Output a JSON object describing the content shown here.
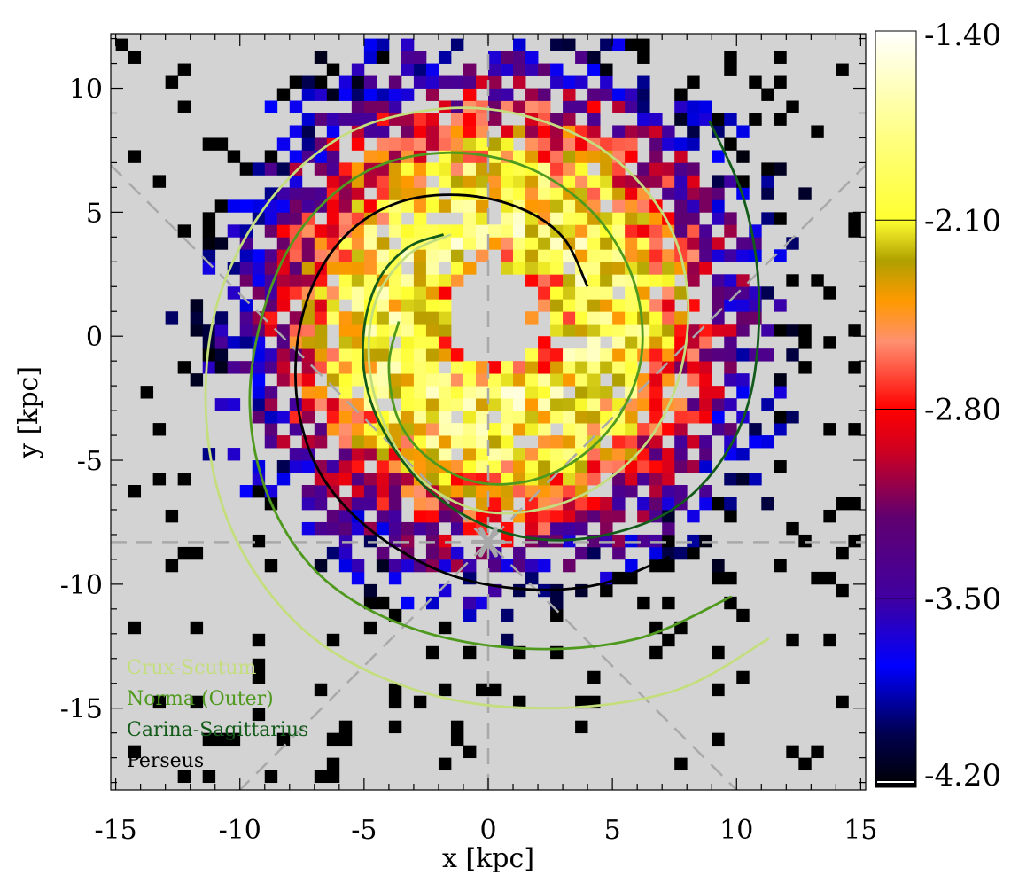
{
  "chart_data": {
    "type": "heatmap",
    "title": "",
    "xlabel": "x [kpc]",
    "ylabel": "y [kpc]",
    "xlim": [
      -15.2,
      15.2
    ],
    "ylim": [
      -18.3,
      12.2
    ],
    "x_ticks": [
      -15,
      -10,
      -5,
      0,
      5,
      10,
      15
    ],
    "y_ticks": [
      -15,
      -10,
      -5,
      0,
      5,
      10
    ],
    "x_tick_labels": [
      "-15",
      "-10",
      "-5",
      "0",
      "5",
      "10",
      "15"
    ],
    "y_tick_labels": [
      "-15",
      "-10",
      "-5",
      "0",
      "5",
      "10"
    ],
    "background_color": "#d3d3d3",
    "sun_position": {
      "x": 0,
      "y": -8.3,
      "marker": "asterisk",
      "color": "#a9a9a9"
    },
    "guide_lines": [
      {
        "type": "horizontal",
        "y": -8.3,
        "style": "dashed",
        "color": "#a9a9a9"
      },
      {
        "type": "vertical",
        "x": 0,
        "style": "dashed",
        "color": "#a9a9a9"
      },
      {
        "type": "diagonal",
        "slope": 1,
        "through": [
          0,
          -8.3
        ],
        "style": "dashed",
        "color": "#a9a9a9"
      },
      {
        "type": "diagonal",
        "slope": -1,
        "through": [
          0,
          -8.3
        ],
        "style": "dashed",
        "color": "#a9a9a9"
      }
    ],
    "colorbar": {
      "range": [
        -4.2,
        -1.4
      ],
      "tick_values": [
        -1.4,
        -2.1,
        -2.8,
        -3.5,
        -4.2
      ],
      "tick_labels": [
        "-1.40",
        "-2.10",
        "-2.80",
        "-3.50",
        "-4.20"
      ],
      "colormap_stops": [
        {
          "value": -4.2,
          "color": "#000000"
        },
        {
          "value": -4.0,
          "color": "#000050"
        },
        {
          "value": -3.75,
          "color": "#0000ff"
        },
        {
          "value": -3.5,
          "color": "#4000a0"
        },
        {
          "value": -3.2,
          "color": "#600070"
        },
        {
          "value": -2.95,
          "color": "#d00020"
        },
        {
          "value": -2.8,
          "color": "#ff0000"
        },
        {
          "value": -2.55,
          "color": "#ff9070"
        },
        {
          "value": -2.4,
          "color": "#ff9900"
        },
        {
          "value": -2.25,
          "color": "#b0a000"
        },
        {
          "value": -2.1,
          "color": "#ffff30"
        },
        {
          "value": -1.8,
          "color": "#ffff80"
        },
        {
          "value": -1.4,
          "color": "#ffffff"
        }
      ]
    },
    "grid": {
      "cell_size_kpc": 0.5,
      "note": "binned map of values between -4.20 and -1.40"
    },
    "spiral_arms": [
      {
        "name": "Crux-Scutum",
        "color": "#c4de7e",
        "points": [
          [
            11.3,
            -12.2
          ],
          [
            7.5,
            -14.3
          ],
          [
            2.5,
            -15.0
          ],
          [
            -2.5,
            -14.4
          ],
          [
            -7.0,
            -12.2
          ],
          [
            -10.0,
            -8.5
          ],
          [
            -11.3,
            -4.0
          ],
          [
            -11.0,
            1.0
          ],
          [
            -9.0,
            5.2
          ],
          [
            -6.0,
            8.0
          ],
          [
            -2.5,
            9.1
          ],
          [
            1.0,
            9.0
          ],
          [
            4.5,
            7.6
          ],
          [
            7.0,
            5.0
          ],
          [
            8.0,
            2.0
          ],
          [
            7.8,
            -1.2
          ],
          [
            6.6,
            -4.0
          ],
          [
            4.5,
            -6.0
          ],
          [
            2.0,
            -7.0
          ],
          [
            -0.5,
            -7.0
          ],
          [
            -2.8,
            -5.7
          ],
          [
            -4.2,
            -3.5
          ],
          [
            -4.8,
            -1.0
          ],
          [
            -4.5,
            1.5
          ],
          [
            -3.2,
            3.3
          ],
          [
            -1.5,
            4.1
          ]
        ]
      },
      {
        "name": "Norma (Outer)",
        "color": "#4f9a1e",
        "points": [
          [
            9.8,
            -10.5
          ],
          [
            6.0,
            -12.2
          ],
          [
            1.5,
            -12.6
          ],
          [
            -3.0,
            -11.8
          ],
          [
            -6.6,
            -9.8
          ],
          [
            -8.8,
            -6.6
          ],
          [
            -9.6,
            -2.8
          ],
          [
            -9.0,
            1.2
          ],
          [
            -7.4,
            4.5
          ],
          [
            -4.8,
            6.7
          ],
          [
            -1.6,
            7.4
          ],
          [
            1.6,
            6.8
          ],
          [
            4.2,
            5.0
          ],
          [
            5.8,
            2.4
          ],
          [
            6.2,
            -0.5
          ],
          [
            5.4,
            -3.0
          ],
          [
            3.8,
            -4.8
          ],
          [
            1.8,
            -5.8
          ],
          [
            -0.4,
            -5.9
          ],
          [
            -2.3,
            -5.0
          ],
          [
            -3.6,
            -3.4
          ],
          [
            -4.0,
            -1.2
          ],
          [
            -3.6,
            0.6
          ]
        ]
      },
      {
        "name": "Carina-Sagittarius",
        "color": "#135b1a",
        "points": [
          [
            8.9,
            8.7
          ],
          [
            10.3,
            5.5
          ],
          [
            10.9,
            1.8
          ],
          [
            10.6,
            -2.2
          ],
          [
            9.4,
            -5.0
          ],
          [
            7.4,
            -7.0
          ],
          [
            4.8,
            -8.0
          ],
          [
            2.2,
            -8.2
          ],
          [
            -0.2,
            -7.6
          ],
          [
            -2.4,
            -6.2
          ],
          [
            -4.0,
            -4.2
          ],
          [
            -4.9,
            -2.0
          ],
          [
            -5.0,
            0.3
          ],
          [
            -4.4,
            2.3
          ],
          [
            -3.2,
            3.6
          ],
          [
            -1.8,
            4.1
          ]
        ]
      },
      {
        "name": "Perseus",
        "color": "#000000",
        "points": [
          [
            7.3,
            -8.9
          ],
          [
            4.5,
            -10.0
          ],
          [
            1.5,
            -10.2
          ],
          [
            -1.6,
            -9.6
          ],
          [
            -4.5,
            -8.0
          ],
          [
            -6.6,
            -5.8
          ],
          [
            -7.6,
            -3.2
          ],
          [
            -7.7,
            -0.4
          ],
          [
            -7.0,
            2.2
          ],
          [
            -5.6,
            4.2
          ],
          [
            -3.6,
            5.4
          ],
          [
            -1.2,
            5.7
          ],
          [
            1.2,
            5.2
          ],
          [
            3.0,
            4.0
          ],
          [
            4.0,
            2.0
          ]
        ]
      }
    ],
    "legend": {
      "placement": "bottom-left",
      "entries": [
        "Crux-Scutum",
        "Norma (Outer)",
        "Carina-Sagittarius",
        "Perseus"
      ]
    }
  }
}
